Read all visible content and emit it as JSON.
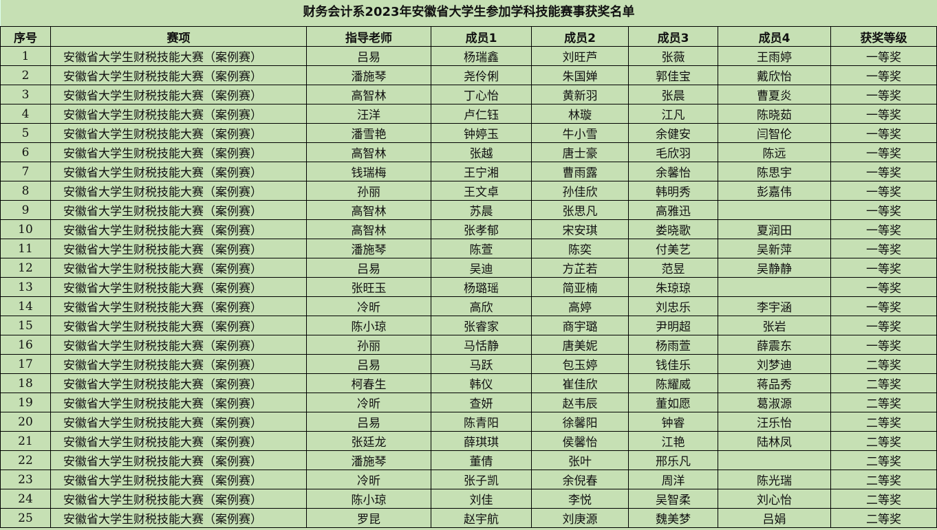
{
  "title": "财务会计系2023年安徽省大学生参加学科技能赛事获奖名单",
  "headers": [
    "序号",
    "赛项",
    "指导老师",
    "成员1",
    "成员2",
    "成员3",
    "成员4",
    "获奖等级"
  ],
  "rows": [
    [
      "1",
      "安徽省大学生财税技能大赛（案例赛）",
      "吕易",
      "杨瑞鑫",
      "刘旺芦",
      "张薇",
      "王雨婷",
      "一等奖"
    ],
    [
      "2",
      "安徽省大学生财税技能大赛（案例赛）",
      "潘施琴",
      "尧伶俐",
      "朱国婵",
      "郭佳宝",
      "戴欣怡",
      "一等奖"
    ],
    [
      "3",
      "安徽省大学生财税技能大赛（案例赛）",
      "高智林",
      "丁心怡",
      "黄新羽",
      "张晨",
      "曹夏炎",
      "一等奖"
    ],
    [
      "4",
      "安徽省大学生财税技能大赛（案例赛）",
      "汪洋",
      "卢仁钰",
      "林璇",
      "江凡",
      "陈晓茹",
      "一等奖"
    ],
    [
      "5",
      "安徽省大学生财税技能大赛（案例赛）",
      "潘雪艳",
      "钟婷玉",
      "牛小雪",
      "余健安",
      "闫智伦",
      "一等奖"
    ],
    [
      "6",
      "安徽省大学生财税技能大赛（案例赛）",
      "高智林",
      "张越",
      "唐士豪",
      "毛欣羽",
      "陈远",
      "一等奖"
    ],
    [
      "7",
      "安徽省大学生财税技能大赛（案例赛）",
      "钱瑞梅",
      "王宁湘",
      "曹雨露",
      "余馨怡",
      "陈思宇",
      "一等奖"
    ],
    [
      "8",
      "安徽省大学生财税技能大赛（案例赛）",
      "孙丽",
      "王文卓",
      "孙佳欣",
      "韩明秀",
      "彭嘉伟",
      "一等奖"
    ],
    [
      "9",
      "安徽省大学生财税技能大赛（案例赛）",
      "高智林",
      "苏晨",
      "张思凡",
      "高雅迅",
      "",
      "一等奖"
    ],
    [
      "10",
      "安徽省大学生财税技能大赛（案例赛）",
      "高智林",
      "张孝郁",
      "宋安琪",
      "娄晓歌",
      "夏润田",
      "一等奖"
    ],
    [
      "11",
      "安徽省大学生财税技能大赛（案例赛）",
      "潘施琴",
      "陈萱",
      "陈奕",
      "付美艺",
      "吴新萍",
      "一等奖"
    ],
    [
      "12",
      "安徽省大学生财税技能大赛（案例赛）",
      "吕易",
      "吴迪",
      "方芷若",
      "范昱",
      "吴静静",
      "一等奖"
    ],
    [
      "13",
      "安徽省大学生财税技能大赛（案例赛）",
      "张旺玉",
      "杨璐瑶",
      "简亚楠",
      "朱琼琼",
      "",
      "一等奖"
    ],
    [
      "14",
      "安徽省大学生财税技能大赛（案例赛）",
      "冷昕",
      "高欣",
      "高婷",
      "刘忠乐",
      "李宇涵",
      "一等奖"
    ],
    [
      "15",
      "安徽省大学生财税技能大赛（案例赛）",
      "陈小琼",
      "张睿家",
      "商宇璐",
      "尹明超",
      "张岩",
      "一等奖"
    ],
    [
      "16",
      "安徽省大学生财税技能大赛（案例赛）",
      "孙丽",
      "马恬静",
      "唐美妮",
      "杨雨萱",
      "薛震东",
      "一等奖"
    ],
    [
      "17",
      "安徽省大学生财税技能大赛（案例赛）",
      "吕易",
      "马跃",
      "包玉婷",
      "钱佳乐",
      "刘梦迪",
      "二等奖"
    ],
    [
      "18",
      "安徽省大学生财税技能大赛（案例赛）",
      "柯春生",
      "韩仪",
      "崔佳欣",
      "陈耀威",
      "蒋品秀",
      "二等奖"
    ],
    [
      "19",
      "安徽省大学生财税技能大赛（案例赛）",
      "冷昕",
      "查妍",
      "赵韦辰",
      "董如愿",
      "葛淑源",
      "二等奖"
    ],
    [
      "20",
      "安徽省大学生财税技能大赛（案例赛）",
      "吕易",
      "陈青阳",
      "徐馨阳",
      "钟睿",
      "汪乐怡",
      "二等奖"
    ],
    [
      "21",
      "安徽省大学生财税技能大赛（案例赛）",
      "张廷龙",
      "薛琪琪",
      "侯馨怡",
      "江艳",
      "陆林凤",
      "二等奖"
    ],
    [
      "22",
      "安徽省大学生财税技能大赛（案例赛）",
      "潘施琴",
      "董倩",
      "张叶",
      "邢乐凡",
      "",
      "二等奖"
    ],
    [
      "23",
      "安徽省大学生财税技能大赛（案例赛）",
      "冷昕",
      "张子凯",
      "余倪春",
      "周洋",
      "陈光瑞",
      "二等奖"
    ],
    [
      "24",
      "安徽省大学生财税技能大赛（案例赛）",
      "陈小琼",
      "刘佳",
      "李悦",
      "吴智柔",
      "刘心怡",
      "二等奖"
    ],
    [
      "25",
      "安徽省大学生财税技能大赛（案例赛）",
      "罗昆",
      "赵宇航",
      "刘庚源",
      "魏美梦",
      "吕娟",
      "二等奖"
    ]
  ],
  "colors": {
    "background": "#c6e0b4",
    "grid": "#000000"
  }
}
